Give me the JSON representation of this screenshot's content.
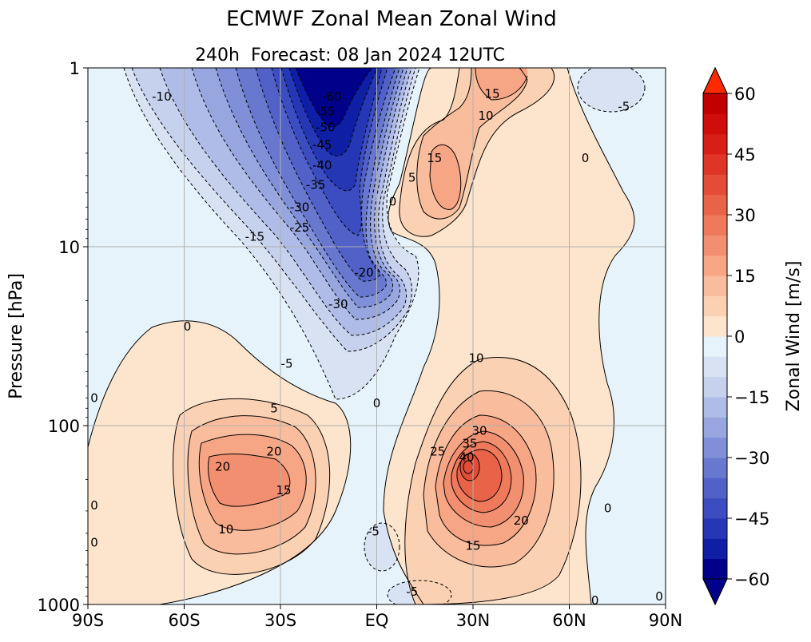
{
  "chart_data": {
    "type": "contour",
    "title": "ECMWF Zonal Mean Zonal Wind",
    "subtitle_left": "240h",
    "subtitle_right": "Forecast:  08 Jan 2024  12UTC",
    "xlabel": "",
    "ylabel": "Pressure [hPa]",
    "x_ticks": [
      {
        "value": -90,
        "label": "90S"
      },
      {
        "value": -60,
        "label": "60S"
      },
      {
        "value": -30,
        "label": "30S"
      },
      {
        "value": 0,
        "label": "EQ"
      },
      {
        "value": 30,
        "label": "30N"
      },
      {
        "value": 60,
        "label": "60N"
      },
      {
        "value": 90,
        "label": "90N"
      }
    ],
    "y_ticks": [
      {
        "value": 1,
        "label": "1"
      },
      {
        "value": 10,
        "label": "10"
      },
      {
        "value": 100,
        "label": "100"
      },
      {
        "value": 1000,
        "label": "1000"
      }
    ],
    "xlim": [
      -90,
      90
    ],
    "ylim": [
      1000,
      1
    ],
    "y_scale": "log",
    "grid": true,
    "colorbar": {
      "label": "Zonal Wind [m/s]",
      "range": [
        -60,
        60
      ],
      "step": 5,
      "extend": "both",
      "ticks": [
        {
          "value": 60,
          "label": "60"
        },
        {
          "value": 45,
          "label": "45"
        },
        {
          "value": 30,
          "label": "30"
        },
        {
          "value": 15,
          "label": "15"
        },
        {
          "value": 0,
          "label": "0"
        },
        {
          "value": -15,
          "label": "−15"
        },
        {
          "value": -30,
          "label": "−30"
        },
        {
          "value": -45,
          "label": "−45"
        },
        {
          "value": -60,
          "label": "−60"
        }
      ],
      "colors": [
        "#00008b",
        "#0e1fa5",
        "#2537b5",
        "#3b4dc0",
        "#5161c7",
        "#6878cf",
        "#8090d8",
        "#98a6e0",
        "#b0bce8",
        "#c6d1ee",
        "#d8e2f2",
        "#e6f3fa",
        "#fde4cc",
        "#fbd1b3",
        "#f9bc9c",
        "#f6a585",
        "#f28f70",
        "#ee795b",
        "#e96349",
        "#e44c37",
        "#de3526",
        "#d81f17",
        "#d10d0b",
        "#c30000"
      ]
    },
    "features": [
      {
        "name": "SH stratospheric easterly core",
        "lat": -18,
        "p": 1,
        "value": -60
      },
      {
        "name": "NH subtropical jet",
        "lat": 28,
        "p": 170,
        "value": 40
      },
      {
        "name": "SH subtropical jet",
        "lat": -47,
        "p": 200,
        "value": 20
      },
      {
        "name": "SH jet secondary max",
        "lat": -30,
        "p": 150,
        "value": 20
      },
      {
        "name": "Tropical upper stratosphere westerly",
        "lat": 22,
        "p": 4,
        "value": 15
      },
      {
        "name": "NH polar stratosphere",
        "lat": 70,
        "p": 1.5,
        "value": -5
      }
    ],
    "contour_labels": [
      {
        "text": "-10",
        "lat": -67,
        "p": 1.45
      },
      {
        "text": "-60",
        "lat": -14,
        "p": 1.45
      },
      {
        "text": "-55",
        "lat": -16,
        "p": 1.75
      },
      {
        "text": "-50",
        "lat": -16,
        "p": 2.15
      },
      {
        "text": "-45",
        "lat": -17,
        "p": 2.7
      },
      {
        "text": "-40",
        "lat": -17,
        "p": 3.5
      },
      {
        "text": "-35",
        "lat": -19,
        "p": 4.5
      },
      {
        "text": "-30",
        "lat": -24,
        "p": 6
      },
      {
        "text": "-25",
        "lat": -24,
        "p": 7.8
      },
      {
        "text": "-15",
        "lat": -38,
        "p": 8.8
      },
      {
        "text": "-20",
        "lat": -4,
        "p": 14
      },
      {
        "text": "-30",
        "lat": -12,
        "p": 21
      },
      {
        "text": "-5",
        "lat": -28,
        "p": 45
      },
      {
        "text": "0",
        "lat": -59,
        "p": 28
      },
      {
        "text": "0",
        "lat": 0,
        "p": 75
      },
      {
        "text": "5",
        "lat": -32,
        "p": 80
      },
      {
        "text": "0",
        "lat": 5,
        "p": 5.6
      },
      {
        "text": "5",
        "lat": 11,
        "p": 4.1
      },
      {
        "text": "15",
        "lat": 18,
        "p": 3.2
      },
      {
        "text": "15",
        "lat": 36,
        "p": 1.4
      },
      {
        "text": "10",
        "lat": 34,
        "p": 1.85
      },
      {
        "text": "0",
        "lat": 65,
        "p": 3.2
      },
      {
        "text": "-5",
        "lat": 77,
        "p": 1.65
      },
      {
        "text": "10",
        "lat": 31,
        "p": 42
      },
      {
        "text": "20",
        "lat": -32,
        "p": 140
      },
      {
        "text": "20",
        "lat": -48,
        "p": 170
      },
      {
        "text": "15",
        "lat": -29,
        "p": 230
      },
      {
        "text": "10",
        "lat": -47,
        "p": 380
      },
      {
        "text": "25",
        "lat": 19,
        "p": 140
      },
      {
        "text": "30",
        "lat": 32,
        "p": 107
      },
      {
        "text": "35",
        "lat": 29,
        "p": 126
      },
      {
        "text": "40",
        "lat": 28,
        "p": 150
      },
      {
        "text": "20",
        "lat": 45,
        "p": 340
      },
      {
        "text": "15",
        "lat": 30,
        "p": 470
      },
      {
        "text": "-5",
        "lat": -1,
        "p": 390
      },
      {
        "text": "-5",
        "lat": 11,
        "p": 850
      },
      {
        "text": "0",
        "lat": -88,
        "p": 70
      },
      {
        "text": "0",
        "lat": -88,
        "p": 280
      },
      {
        "text": "0",
        "lat": -88,
        "p": 450
      },
      {
        "text": "0",
        "lat": 72,
        "p": 290
      },
      {
        "text": "0",
        "lat": 68,
        "p": 950
      },
      {
        "text": "0",
        "lat": 88,
        "p": 900
      }
    ]
  }
}
